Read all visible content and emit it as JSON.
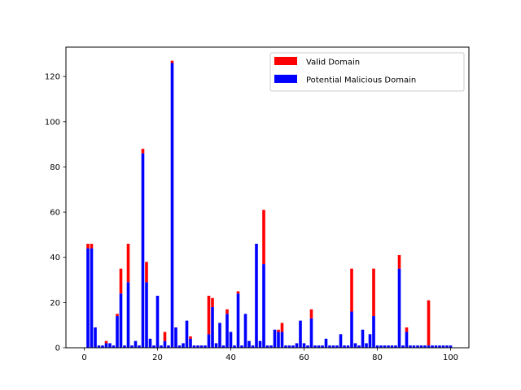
{
  "chart_data": {
    "type": "bar",
    "stacked": true,
    "title": "",
    "xlabel": "",
    "ylabel": "",
    "xlim": [
      -5,
      105
    ],
    "ylim": [
      0,
      133
    ],
    "xticks": [
      0,
      20,
      40,
      60,
      80,
      100
    ],
    "yticks": [
      0,
      20,
      40,
      60,
      80,
      100,
      120
    ],
    "legend_position": "top-right",
    "x": [
      1,
      2,
      3,
      4,
      5,
      6,
      7,
      8,
      9,
      10,
      11,
      12,
      13,
      14,
      15,
      16,
      17,
      18,
      19,
      20,
      21,
      22,
      23,
      24,
      25,
      26,
      27,
      28,
      29,
      30,
      31,
      32,
      33,
      34,
      35,
      36,
      37,
      38,
      39,
      40,
      41,
      42,
      43,
      44,
      45,
      46,
      47,
      48,
      49,
      50,
      51,
      52,
      53,
      54,
      55,
      56,
      57,
      58,
      59,
      60,
      61,
      62,
      63,
      64,
      65,
      66,
      67,
      68,
      69,
      70,
      71,
      72,
      73,
      74,
      75,
      76,
      77,
      78,
      79,
      80,
      81,
      82,
      83,
      84,
      85,
      86,
      87,
      88,
      89,
      90,
      91,
      92,
      93,
      94,
      95,
      96,
      97,
      98,
      99,
      100
    ],
    "series": [
      {
        "name": "Valid Domain",
        "color": "#ff0000",
        "role": "stacked-on-top",
        "values": [
          2,
          2,
          0,
          0,
          0,
          1,
          0,
          0,
          1,
          11,
          0,
          17,
          0,
          0,
          0,
          2,
          9,
          0,
          0,
          0,
          0,
          4,
          0,
          1,
          0,
          0,
          0,
          0,
          1,
          0,
          0,
          0,
          0,
          17,
          4,
          0,
          0,
          0,
          2,
          0,
          0,
          1,
          0,
          0,
          0,
          0,
          0,
          0,
          24,
          0,
          0,
          0,
          1,
          4,
          0,
          0,
          0,
          0,
          0,
          0,
          0,
          4,
          0,
          0,
          0,
          0,
          0,
          0,
          0,
          0,
          0,
          0,
          19,
          0,
          0,
          0,
          0,
          0,
          21,
          0,
          0,
          0,
          0,
          0,
          0,
          6,
          0,
          2,
          0,
          0,
          0,
          0,
          0,
          20,
          0,
          0,
          0,
          0,
          0,
          0
        ]
      },
      {
        "name": "Potential Malicious Domain",
        "color": "#0000ff",
        "role": "base",
        "values": [
          44,
          44,
          9,
          1,
          1,
          2,
          2,
          1,
          14,
          24,
          1,
          29,
          1,
          3,
          1,
          86,
          29,
          4,
          1,
          23,
          1,
          3,
          1,
          126,
          9,
          1,
          2,
          12,
          4,
          1,
          1,
          1,
          1,
          6,
          18,
          2,
          11,
          1,
          15,
          7,
          1,
          24,
          1,
          15,
          3,
          1,
          46,
          3,
          37,
          1,
          1,
          8,
          7,
          7,
          1,
          1,
          1,
          2,
          12,
          2,
          1,
          13,
          1,
          1,
          1,
          4,
          1,
          1,
          1,
          6,
          1,
          1,
          16,
          2,
          1,
          8,
          2,
          6,
          14,
          1,
          1,
          1,
          1,
          1,
          1,
          35,
          1,
          7,
          1,
          1,
          1,
          1,
          1,
          1,
          1,
          1,
          1,
          1,
          1,
          1
        ]
      }
    ]
  }
}
